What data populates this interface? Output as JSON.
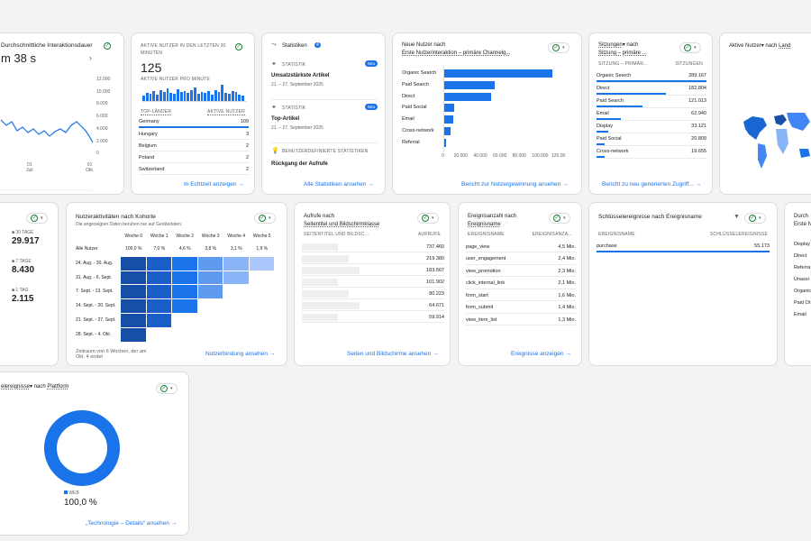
{
  "c1": {
    "title": "Durchschnittliche Interaktionsdauer",
    "value": "m 38 s",
    "yticks": [
      "12.000",
      "10.000",
      "8.000",
      "6.000",
      "4.000",
      "2.000",
      "0"
    ],
    "xticks": [
      "01\nJuli",
      "01\nOkt."
    ]
  },
  "c2": {
    "title": "AKTIVE NUTZER IN DEN LETZTEN 30 MINUTEN",
    "value": "125",
    "subtitle": "AKTIVE NUTZER PRO MINUTE",
    "col1": "TOP-LÄNDER",
    "col2": "AKTIVE NUTZER",
    "rows": [
      {
        "k": "Germany",
        "v": "109"
      },
      {
        "k": "Hungary",
        "v": "3"
      },
      {
        "k": "Belgium",
        "v": "2"
      },
      {
        "k": "Poland",
        "v": "2"
      },
      {
        "k": "Switzerland",
        "v": "2"
      }
    ],
    "link": "In Echtzeit anzeigen"
  },
  "c3": {
    "title": "Statistiken",
    "badge": "4",
    "items": [
      {
        "tag": "STATISTIK",
        "new": "Neu",
        "head": "Umsatzstärkste Artikel",
        "date": "21. – 27. September 2025"
      },
      {
        "tag": "STATISTIK",
        "new": "Neu",
        "head": "Top-Artikel",
        "date": "21. – 27. September 2025"
      }
    ],
    "custom": "BENUTZERDEFINIERTE STATISTIKEN",
    "custom_head": "Rückgang der Aufrufe",
    "link": "Alle Statistiken ansehen"
  },
  "c4": {
    "title": "Neue Nutzer nach",
    "title2": "Erste Nutzerinteraktion – primäre Channelg...",
    "rows": [
      {
        "k": "Organic Search",
        "v": 112000
      },
      {
        "k": "Paid Search",
        "v": 53000
      },
      {
        "k": "Direct",
        "v": 48500
      },
      {
        "k": "Paid Social",
        "v": 11500
      },
      {
        "k": "Email",
        "v": 10000
      },
      {
        "k": "Cross-network",
        "v": 7500
      },
      {
        "k": "Referral",
        "v": 2500
      }
    ],
    "xticks": [
      "0",
      "20.000",
      "40.000",
      "60.000",
      "80.000",
      "100.000",
      "120.00"
    ],
    "link": "Bericht zur Nutzergewinnung ansehen"
  },
  "c5": {
    "title": "Sitzungen",
    "title_b": "nach",
    "title2": "Sitzung – primäre ...",
    "col1": "SITZUNG – PRIMÄR...",
    "col2": "SITZUNGEN",
    "rows": [
      {
        "k": "Organic Search",
        "v": "289.167",
        "f": 1
      },
      {
        "k": "Direct",
        "v": "182.804",
        "f": 0.63
      },
      {
        "k": "Paid Search",
        "v": "121.013",
        "f": 0.42
      },
      {
        "k": "Email",
        "v": "62.940",
        "f": 0.22
      },
      {
        "k": "Display",
        "v": "33.121",
        "f": 0.11
      },
      {
        "k": "Paid Social",
        "v": "20.809",
        "f": 0.07
      },
      {
        "k": "Cross-network",
        "v": "19.655",
        "f": 0.07
      }
    ],
    "link": "Bericht zu neu generierten Zugriff..."
  },
  "c6": {
    "title": "Aktive Nutzer",
    "title_b": "nach",
    "title_c": "Land"
  },
  "r1": {
    "items": [
      {
        "label": "30 TAGE",
        "value": "29.917",
        "color": "#1a73e8"
      },
      {
        "label": "7 TAGE",
        "value": "8.430",
        "color": "#34a853"
      },
      {
        "label": "1 TAG",
        "value": "2.115",
        "color": "#fa7b17"
      }
    ]
  },
  "r2": {
    "title": "Nutzeraktivitäten nach Kohorte",
    "subtitle": "Die angezeigten Daten beruhen nur auf Gerätedaten.",
    "weeks": [
      "Woche 0",
      "Woche 1",
      "Woche 2",
      "Woche 3",
      "Woche 4",
      "Woche 5"
    ],
    "rows": [
      {
        "k": "Alle Nutzer",
        "vals": [
          "100,0 %",
          "7,0 %",
          "4,6 %",
          "3,8 %",
          "3,1 %",
          "1,9 %"
        ]
      },
      {
        "k": "24. Aug. - 30. Aug.",
        "n": 6
      },
      {
        "k": "31. Aug. - 6. Sept.",
        "n": 5
      },
      {
        "k": "7. Sept. - 13. Sept.",
        "n": 4
      },
      {
        "k": "14. Sept. - 20. Sept.",
        "n": 3
      },
      {
        "k": "21. Sept. - 27. Sept.",
        "n": 2
      },
      {
        "k": "28. Sept. - 4. Okt.",
        "n": 1
      }
    ],
    "footer": "Zeitraum von 6 Wochen, der am Okt. 4 endet",
    "link": "Nutzerbindung ansehen"
  },
  "r3": {
    "title": "Aufrufe nach",
    "title2": "Seitentitel und Bildschirmklasse",
    "col1": "SEITENTITEL UND BILDSC...",
    "col2": "AUFRUFE",
    "vals": [
      "737.460",
      "219.380",
      "183.567",
      "101.902",
      "80.223",
      "64.671",
      "59.914"
    ],
    "link": "Seiten und Bildschirme ansehen"
  },
  "r4": {
    "title": "Ereignisanzahl nach",
    "title2": "Ereignisname",
    "col1": "EREIGNISNAME",
    "col2": "EREIGNISANZA...",
    "rows": [
      {
        "k": "page_view",
        "v": "4,5 Mio."
      },
      {
        "k": "user_engagement",
        "v": "2,4 Mio."
      },
      {
        "k": "view_promotion",
        "v": "2,3 Mio."
      },
      {
        "k": "click_internal_link",
        "v": "2,1 Mio."
      },
      {
        "k": "form_start",
        "v": "1,6 Mio."
      },
      {
        "k": "form_submit",
        "v": "1,4 Mio."
      },
      {
        "k": "view_item_list",
        "v": "1,3 Mio."
      }
    ],
    "link": "Ereignisse anzeigen"
  },
  "r5": {
    "title": "Schlüsselereignisse nach Ereignisname",
    "col1": "EREIGNISNAME",
    "col2": "SCHLÜSSELEREIGNISSE",
    "row": {
      "k": "purchase",
      "v": "55.173"
    }
  },
  "r6": {
    "title": "Durch",
    "title2": "Erste N",
    "rows": [
      "Display",
      "Direct",
      "Referra",
      "Unassi",
      "Organic Shoppi",
      "Paid Ot",
      "Email"
    ]
  },
  "b1": {
    "title": "elereignisse",
    "title_b": "nach",
    "title_c": "Plattform",
    "legend": "WEB",
    "value": "100,0 %",
    "link": "„Technologie – Details“ ansehen"
  }
}
